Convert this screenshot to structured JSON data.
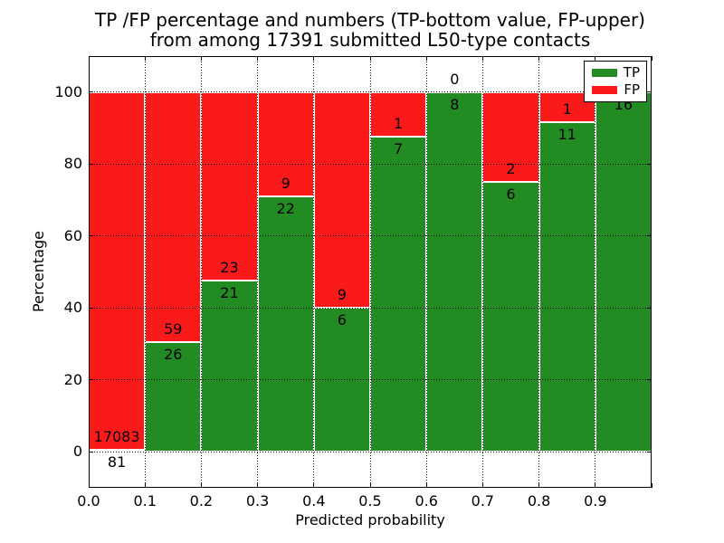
{
  "title": {
    "line1": "TP /FP percentage and numbers (TP-bottom value, FP-upper)",
    "line2": "from among 17391 submitted L50-type contacts"
  },
  "chart_data": {
    "type": "bar",
    "stacked": true,
    "title": "TP /FP percentage and numbers (TP-bottom value, FP-upper) from among 17391 submitted L50-type contacts",
    "total_contacts": 17391,
    "xlabel": "Predicted probability",
    "ylabel": "Percentage",
    "xlim": [
      0.0,
      1.0
    ],
    "ylim": [
      -10,
      110
    ],
    "grid": "dotted",
    "bin_width": 0.1,
    "categories": [
      "0.0-0.1",
      "0.1-0.2",
      "0.2-0.3",
      "0.3-0.4",
      "0.4-0.5",
      "0.5-0.6",
      "0.6-0.7",
      "0.7-0.8",
      "0.8-0.9",
      "0.9-1.0"
    ],
    "x_tick_labels": [
      "0.0",
      "0.1",
      "0.2",
      "0.3",
      "0.4",
      "0.5",
      "0.6",
      "0.7",
      "0.8",
      "0.9"
    ],
    "y_tick_values": [
      0,
      20,
      40,
      60,
      80,
      100
    ],
    "y_tick_labels": [
      "0",
      "20",
      "40",
      "60",
      "80",
      "100"
    ],
    "series": [
      {
        "name": "TP",
        "color": "#228B22",
        "counts": [
          81,
          26,
          21,
          22,
          6,
          7,
          8,
          6,
          11,
          16
        ]
      },
      {
        "name": "FP",
        "color": "#FA1A1A",
        "counts": [
          17083,
          59,
          23,
          9,
          9,
          1,
          0,
          2,
          1,
          0
        ]
      }
    ],
    "tp_percent_of_bin": [
      0.47,
      30.59,
      47.73,
      70.97,
      40.0,
      87.5,
      100.0,
      75.0,
      91.67,
      100.0
    ],
    "legend": {
      "position": "upper right",
      "entries": [
        {
          "label": "TP",
          "color": "#228B22"
        },
        {
          "label": "FP",
          "color": "#FA1A1A"
        }
      ]
    }
  }
}
